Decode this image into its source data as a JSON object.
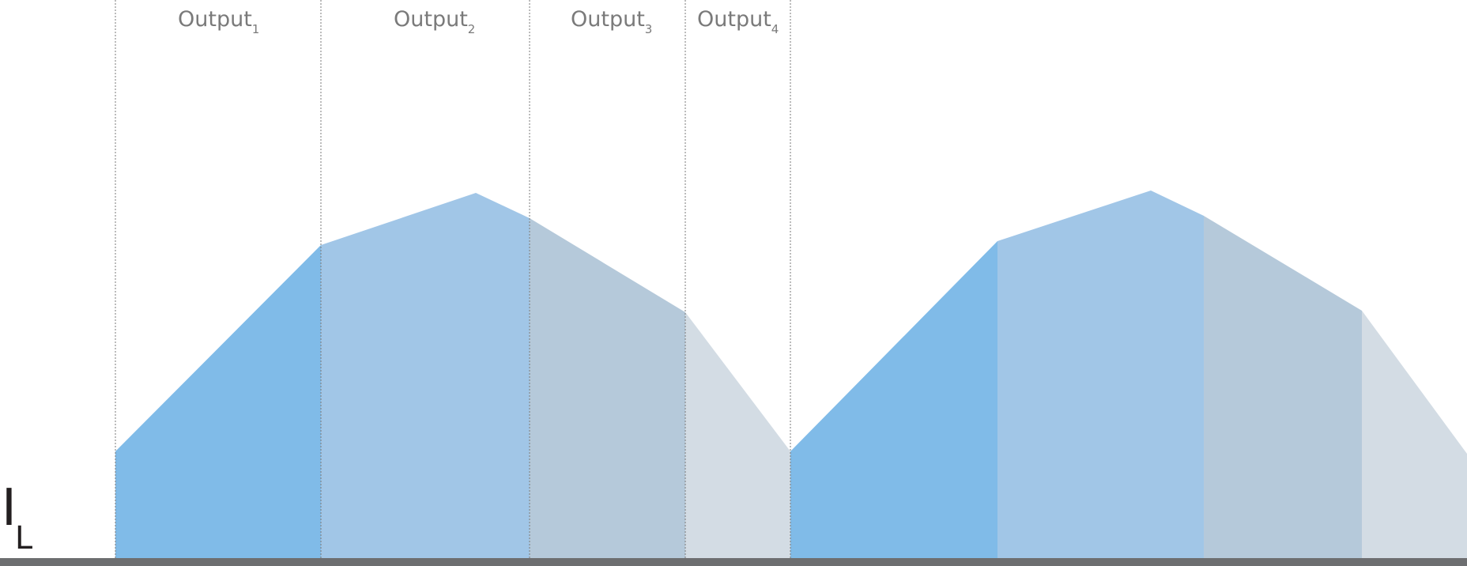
{
  "axis": {
    "symbol": "I",
    "subscript": "L"
  },
  "phases": [
    {
      "label": "Output",
      "sub": "1",
      "color": "#80bbe8"
    },
    {
      "label": "Output",
      "sub": "2",
      "color": "#a1c6e7"
    },
    {
      "label": "Output",
      "sub": "3",
      "color": "#b5c9da"
    },
    {
      "label": "Output",
      "sub": "4",
      "color": "#d3dce4"
    }
  ],
  "colors": {
    "baseline": "#6d6e70",
    "divider": "#7a7a7a",
    "label": "#7a7a7a",
    "axis_label": "#231f20"
  }
}
